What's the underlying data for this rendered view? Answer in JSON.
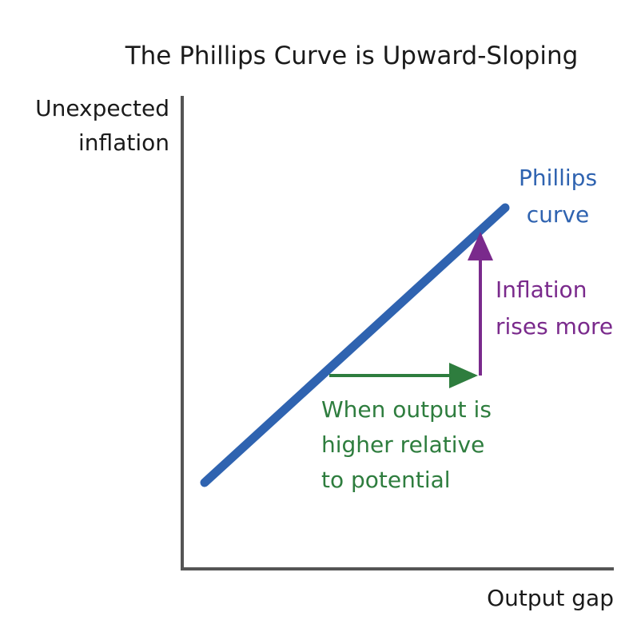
{
  "title": "The Phillips Curve is Upward-Sloping",
  "y_axis_label": [
    "Unexpected",
    "inflation"
  ],
  "x_axis_label": "Output gap",
  "curve_label": [
    "Phillips",
    "curve"
  ],
  "vertical_annotation": [
    "Inflation",
    "rises more"
  ],
  "horizontal_annotation": [
    "When output is",
    "higher relative",
    "to potential"
  ]
}
